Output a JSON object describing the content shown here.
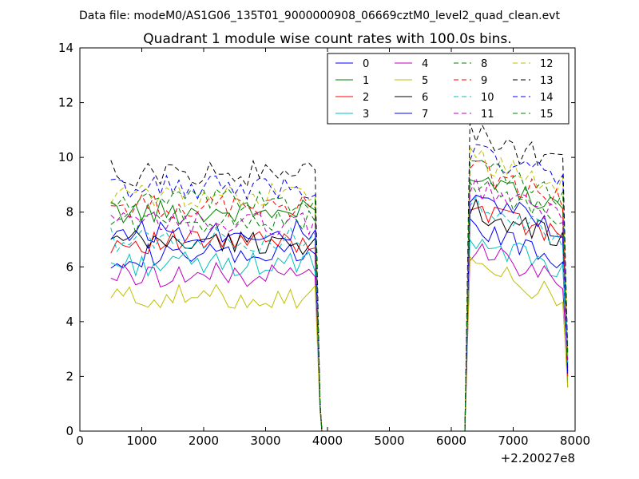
{
  "suptitle": "Data file: modeM0/AS1G06_135T01_9000000908_06669cztM0_level2_quad_clean.evt",
  "chart_data": {
    "type": "line",
    "title": "Quadrant 1 module wise count rates with 100.0s bins.",
    "xlabel": "",
    "ylabel": "",
    "x_offset_label": "+2.20027e8",
    "xlim": [
      0,
      8000
    ],
    "ylim": [
      0,
      14
    ],
    "xticks": [
      0,
      1000,
      2000,
      3000,
      4000,
      5000,
      6000,
      7000,
      8000
    ],
    "yticks": [
      0,
      2,
      4,
      6,
      8,
      10,
      12,
      14
    ],
    "grid": false,
    "legend_position": "top-right",
    "legend_columns": 4,
    "gap_interval": [
      3880,
      6220
    ],
    "segment1_x": [
      500,
      600,
      700,
      800,
      900,
      1000,
      1100,
      1200,
      1300,
      1400,
      1500,
      1600,
      1700,
      1800,
      1900,
      2000,
      2100,
      2200,
      2300,
      2400,
      2500,
      2600,
      2700,
      2800,
      2900,
      3000,
      3100,
      3200,
      3300,
      3400,
      3500,
      3600,
      3700,
      3800,
      3880
    ],
    "segment2_x": [
      6220,
      6300,
      6400,
      6500,
      6600,
      6700,
      6800,
      6900,
      7000,
      7100,
      7200,
      7300,
      7400,
      7500,
      7600,
      7700,
      7800,
      7880
    ],
    "series": [
      {
        "name": "0",
        "color": "#0000ff",
        "dash": "solid",
        "base1": 6.4,
        "base2": 7.4,
        "amp": 0.45,
        "end1": 0.9,
        "end2": 2.2
      },
      {
        "name": "1",
        "color": "#008000",
        "dash": "solid",
        "base1": 8.0,
        "base2": 9.2,
        "amp": 0.45,
        "end1": 1.0,
        "end2": 1.6
      },
      {
        "name": "2",
        "color": "#ff0000",
        "dash": "solid",
        "base1": 6.9,
        "base2": 8.2,
        "amp": 0.45,
        "end1": 0.9,
        "end2": 2.0
      },
      {
        "name": "3",
        "color": "#00bfbf",
        "dash": "solid",
        "base1": 6.1,
        "base2": 7.0,
        "amp": 0.45,
        "end1": 0.8,
        "end2": 2.4
      },
      {
        "name": "4",
        "color": "#bf00bf",
        "dash": "solid",
        "base1": 5.7,
        "base2": 6.6,
        "amp": 0.45,
        "end1": 0.8,
        "end2": 2.5
      },
      {
        "name": "5",
        "color": "#bfbf00",
        "dash": "solid",
        "base1": 4.9,
        "base2": 6.0,
        "amp": 0.45,
        "end1": 0.7,
        "end2": 1.6
      },
      {
        "name": "6",
        "color": "#000000",
        "dash": "solid",
        "base1": 6.9,
        "base2": 8.1,
        "amp": 0.45,
        "end1": 0.9,
        "end2": 2.3
      },
      {
        "name": "7",
        "color": "#0000ff",
        "dash": "solid",
        "base1": 7.3,
        "base2": 8.5,
        "amp": 0.45,
        "end1": 0.9,
        "end2": 2.1
      },
      {
        "name": "8",
        "color": "#008000",
        "dash": "dashed",
        "base1": 7.7,
        "base2": 9.0,
        "amp": 0.45,
        "end1": 1.0,
        "end2": 2.6
      },
      {
        "name": "9",
        "color": "#ff0000",
        "dash": "dashed",
        "base1": 8.2,
        "base2": 9.5,
        "amp": 0.45,
        "end1": 1.0,
        "end2": 2.7
      },
      {
        "name": "10",
        "color": "#00bfbf",
        "dash": "dashed",
        "base1": 7.0,
        "base2": 8.2,
        "amp": 0.45,
        "end1": 0.9,
        "end2": 2.5
      },
      {
        "name": "11",
        "color": "#bf00bf",
        "dash": "dashed",
        "base1": 7.6,
        "base2": 8.9,
        "amp": 0.45,
        "end1": 1.0,
        "end2": 2.6
      },
      {
        "name": "12",
        "color": "#bfbf00",
        "dash": "dashed",
        "base1": 8.6,
        "base2": 10.0,
        "amp": 0.45,
        "end1": 1.0,
        "end2": 2.8
      },
      {
        "name": "13",
        "color": "#000000",
        "dash": "dashed",
        "base1": 9.4,
        "base2": 10.8,
        "amp": 0.5,
        "end1": 1.1,
        "end2": 3.0
      },
      {
        "name": "14",
        "color": "#0000ff",
        "dash": "dashed",
        "base1": 8.9,
        "base2": 10.2,
        "amp": 0.45,
        "end1": 1.0,
        "end2": 2.9
      },
      {
        "name": "15",
        "color": "#008000",
        "dash": "dashed",
        "base1": 8.4,
        "base2": 9.7,
        "amp": 0.45,
        "end1": 1.0,
        "end2": 2.8
      }
    ]
  }
}
